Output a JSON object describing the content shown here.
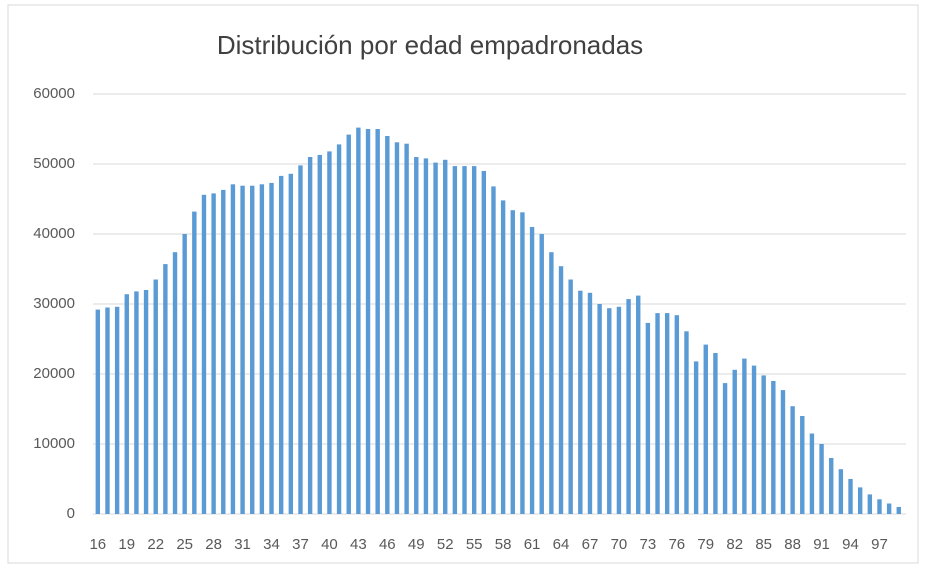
{
  "chart_data": {
    "type": "bar",
    "title": "Distribución por edad empadronadas",
    "categories": [
      16,
      null,
      null,
      19,
      null,
      null,
      22,
      null,
      null,
      25,
      null,
      null,
      28,
      null,
      null,
      31,
      null,
      null,
      34,
      null,
      null,
      37,
      null,
      null,
      40,
      null,
      null,
      43,
      null,
      null,
      46,
      null,
      null,
      49,
      null,
      null,
      52,
      null,
      null,
      55,
      null,
      null,
      58,
      null,
      null,
      61,
      null,
      null,
      64,
      null,
      null,
      67,
      null,
      null,
      70,
      null,
      null,
      73,
      null,
      null,
      76,
      null,
      null,
      79,
      null,
      null,
      82,
      null,
      null,
      85,
      null,
      null,
      88,
      null,
      null,
      91,
      null,
      null,
      94,
      null,
      null,
      97,
      null,
      null
    ],
    "values": [
      29200,
      29500,
      29600,
      31400,
      31800,
      32000,
      33500,
      35700,
      37400,
      40000,
      43200,
      45600,
      45800,
      46300,
      47100,
      46900,
      46900,
      47100,
      47300,
      48300,
      48600,
      49800,
      51000,
      51300,
      51800,
      52800,
      54200,
      55200,
      55000,
      55000,
      54000,
      53100,
      52900,
      51000,
      50800,
      50200,
      50600,
      49700,
      49700,
      49700,
      49000,
      46800,
      44800,
      43400,
      43100,
      41000,
      40000,
      37400,
      35400,
      33500,
      31900,
      31600,
      30000,
      29400,
      29600,
      30700,
      31200,
      27300,
      28700,
      28700,
      28400,
      26100,
      21800,
      24200,
      23000,
      18700,
      20600,
      22200,
      21200,
      19800,
      19000,
      17700,
      15400,
      14000,
      11500,
      10000,
      8000,
      6400,
      5000,
      3800,
      2800,
      2100,
      1500,
      1000
    ],
    "color": "#5b9bd5",
    "ylim": [
      0,
      60000
    ],
    "yticks": [
      0,
      10000,
      20000,
      30000,
      40000,
      50000,
      60000
    ],
    "grid": true
  }
}
